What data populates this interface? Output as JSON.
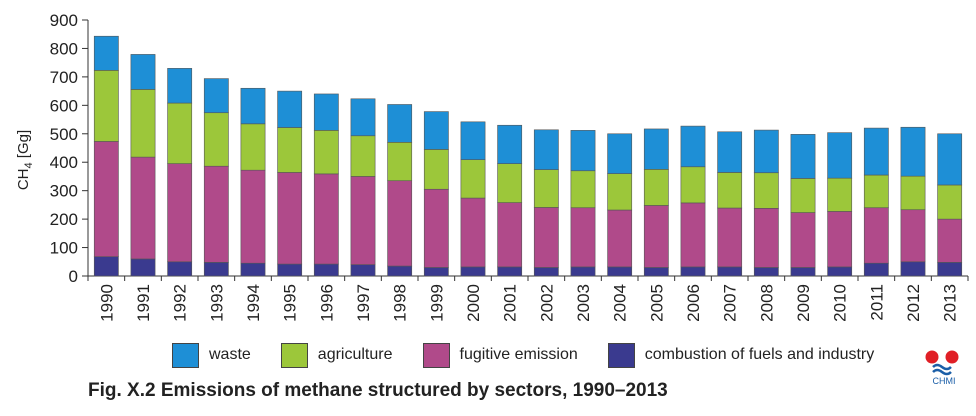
{
  "chart_data": {
    "type": "bar",
    "stacked": true,
    "categories": [
      "1990",
      "1991",
      "1992",
      "1993",
      "1994",
      "1995",
      "1996",
      "1997",
      "1998",
      "1999",
      "2000",
      "2001",
      "2002",
      "2003",
      "2004",
      "2005",
      "2006",
      "2007",
      "2008",
      "2009",
      "2010",
      "2011",
      "2012",
      "2013"
    ],
    "series": [
      {
        "name": "combustion of fuels and industry",
        "color": "#3a3a8f",
        "values": [
          68,
          60,
          50,
          48,
          45,
          42,
          42,
          40,
          35,
          30,
          32,
          32,
          30,
          32,
          32,
          30,
          32,
          32,
          30,
          30,
          32,
          45,
          50,
          48
        ]
      },
      {
        "name": "fugitive emission",
        "color": "#b04a8a",
        "values": [
          405,
          358,
          345,
          338,
          327,
          322,
          317,
          310,
          300,
          275,
          242,
          226,
          211,
          208,
          200,
          218,
          225,
          207,
          208,
          193,
          195,
          195,
          183,
          152
        ]
      },
      {
        "name": "agriculture",
        "color": "#9cc73a",
        "values": [
          250,
          238,
          213,
          188,
          163,
          158,
          153,
          143,
          135,
          140,
          135,
          137,
          133,
          130,
          128,
          127,
          127,
          125,
          125,
          120,
          117,
          115,
          118,
          120
        ]
      },
      {
        "name": "waste",
        "color": "#1e8fd6",
        "values": [
          120,
          123,
          122,
          120,
          125,
          128,
          128,
          130,
          133,
          133,
          133,
          135,
          140,
          142,
          140,
          142,
          143,
          143,
          150,
          155,
          160,
          165,
          172,
          180
        ]
      }
    ],
    "ylabel": "CH4 [Gg]",
    "ylim": [
      0,
      900
    ],
    "yticks": [
      0,
      100,
      200,
      300,
      400,
      500,
      600,
      700,
      800,
      900
    ],
    "grid": false,
    "legend_position": "bottom"
  },
  "legend": {
    "items": [
      {
        "label": "waste",
        "color": "#1e8fd6"
      },
      {
        "label": "agriculture",
        "color": "#9cc73a"
      },
      {
        "label": "fugitive emission",
        "color": "#b04a8a"
      },
      {
        "label": "combustion of fuels and industry",
        "color": "#3a3a8f"
      }
    ]
  },
  "caption": "Fig. X.2  Emissions of methane structured by sectors, 1990–2013",
  "ylabel_main": "CH",
  "ylabel_sub": "4",
  "ylabel_unit": " [Gg]",
  "logo": {
    "text": "CHMI"
  }
}
